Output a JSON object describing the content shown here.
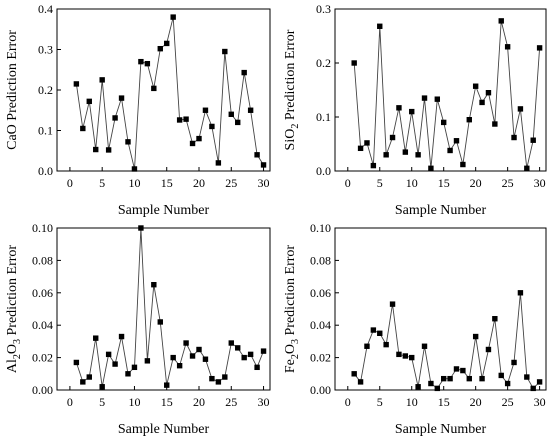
{
  "chart_data": [
    {
      "type": "line",
      "xlabel": "Sample Number",
      "ylabel": "CaO Prediction Error",
      "ylabel_parts": [
        {
          "text": "CaO Prediction Error",
          "sub": false
        }
      ],
      "xlim": [
        -2,
        31
      ],
      "ylim": [
        0,
        0.4
      ],
      "xticks": [
        0,
        5,
        10,
        15,
        20,
        25,
        30
      ],
      "yticks": [
        0.0,
        0.1,
        0.2,
        0.3,
        0.4
      ],
      "ytick_labels": [
        "0.0",
        "0.1",
        "0.2",
        "0.3",
        "0.4"
      ],
      "grid": false,
      "marker": "square",
      "series": [
        {
          "x": [
            1,
            2,
            3,
            4,
            5,
            6,
            7,
            8,
            9,
            10,
            11,
            12,
            13,
            14,
            15,
            16,
            17,
            18,
            19,
            20,
            21,
            22,
            23,
            24,
            25,
            26,
            27,
            28,
            29,
            30
          ],
          "y": [
            0.215,
            0.105,
            0.172,
            0.053,
            0.225,
            0.052,
            0.131,
            0.18,
            0.072,
            0.005,
            0.27,
            0.265,
            0.204,
            0.302,
            0.315,
            0.38,
            0.126,
            0.128,
            0.068,
            0.08,
            0.15,
            0.11,
            0.02,
            0.295,
            0.14,
            0.12,
            0.243,
            0.15,
            0.04,
            0.015
          ]
        }
      ]
    },
    {
      "type": "line",
      "xlabel": "Sample Number",
      "ylabel": "SiO2 Prediction Error",
      "ylabel_parts": [
        {
          "text": "SiO",
          "sub": false
        },
        {
          "text": "2",
          "sub": true
        },
        {
          "text": " Prediction Error",
          "sub": false
        }
      ],
      "xlim": [
        -2,
        31
      ],
      "ylim": [
        0,
        0.3
      ],
      "xticks": [
        0,
        5,
        10,
        15,
        20,
        25,
        30
      ],
      "yticks": [
        0.0,
        0.1,
        0.2,
        0.3
      ],
      "ytick_labels": [
        "0.0",
        "0.1",
        "0.2",
        "0.3"
      ],
      "grid": false,
      "marker": "square",
      "series": [
        {
          "x": [
            1,
            2,
            3,
            4,
            5,
            6,
            7,
            8,
            9,
            10,
            11,
            12,
            13,
            14,
            15,
            16,
            17,
            18,
            19,
            20,
            21,
            22,
            23,
            24,
            25,
            26,
            27,
            28,
            29,
            30
          ],
          "y": [
            0.2,
            0.042,
            0.052,
            0.01,
            0.268,
            0.03,
            0.062,
            0.117,
            0.035,
            0.11,
            0.03,
            0.135,
            0.005,
            0.133,
            0.09,
            0.038,
            0.056,
            0.012,
            0.095,
            0.157,
            0.127,
            0.145,
            0.087,
            0.278,
            0.23,
            0.062,
            0.115,
            0.005,
            0.057,
            0.228
          ]
        }
      ]
    },
    {
      "type": "line",
      "xlabel": "Sample Number",
      "ylabel": "Al2O3 Prediction Error",
      "ylabel_parts": [
        {
          "text": "Al",
          "sub": false
        },
        {
          "text": "2",
          "sub": true
        },
        {
          "text": "O",
          "sub": false
        },
        {
          "text": "3",
          "sub": true
        },
        {
          "text": " Prediction Error",
          "sub": false
        }
      ],
      "xlim": [
        -2,
        31
      ],
      "ylim": [
        0,
        0.1
      ],
      "xticks": [
        0,
        5,
        10,
        15,
        20,
        25,
        30
      ],
      "yticks": [
        0.0,
        0.02,
        0.04,
        0.06,
        0.08,
        0.1
      ],
      "ytick_labels": [
        "0.00",
        "0.02",
        "0.04",
        "0.06",
        "0.08",
        "0.10"
      ],
      "grid": false,
      "marker": "square",
      "series": [
        {
          "x": [
            1,
            2,
            3,
            4,
            5,
            6,
            7,
            8,
            9,
            10,
            11,
            12,
            13,
            14,
            15,
            16,
            17,
            18,
            19,
            20,
            21,
            22,
            23,
            24,
            25,
            26,
            27,
            28,
            29,
            30
          ],
          "y": [
            0.017,
            0.005,
            0.008,
            0.032,
            0.002,
            0.022,
            0.016,
            0.033,
            0.01,
            0.014,
            0.1,
            0.018,
            0.065,
            0.042,
            0.003,
            0.02,
            0.015,
            0.029,
            0.021,
            0.025,
            0.019,
            0.007,
            0.005,
            0.008,
            0.029,
            0.026,
            0.02,
            0.022,
            0.014,
            0.024
          ]
        }
      ]
    },
    {
      "type": "line",
      "xlabel": "Sample Number",
      "ylabel": "Fe2O3 Prediction Error",
      "ylabel_parts": [
        {
          "text": "Fe",
          "sub": false
        },
        {
          "text": "2",
          "sub": true
        },
        {
          "text": "O",
          "sub": false
        },
        {
          "text": "3",
          "sub": true
        },
        {
          "text": " Prediction Error",
          "sub": false
        }
      ],
      "xlim": [
        -2,
        31
      ],
      "ylim": [
        0,
        0.1
      ],
      "xticks": [
        0,
        5,
        10,
        15,
        20,
        25,
        30
      ],
      "yticks": [
        0.0,
        0.02,
        0.04,
        0.06,
        0.08,
        0.1
      ],
      "ytick_labels": [
        "0.00",
        "0.02",
        "0.04",
        "0.06",
        "0.08",
        "0.10"
      ],
      "grid": false,
      "marker": "square",
      "series": [
        {
          "x": [
            1,
            2,
            3,
            4,
            5,
            6,
            7,
            8,
            9,
            10,
            11,
            12,
            13,
            14,
            15,
            16,
            17,
            18,
            19,
            20,
            21,
            22,
            23,
            24,
            25,
            26,
            27,
            28,
            29,
            30
          ],
          "y": [
            0.01,
            0.005,
            0.027,
            0.037,
            0.035,
            0.028,
            0.053,
            0.022,
            0.021,
            0.02,
            0.002,
            0.027,
            0.004,
            0.001,
            0.007,
            0.007,
            0.013,
            0.012,
            0.007,
            0.033,
            0.007,
            0.025,
            0.044,
            0.009,
            0.004,
            0.017,
            0.06,
            0.008,
            0.001,
            0.005
          ]
        }
      ]
    }
  ]
}
